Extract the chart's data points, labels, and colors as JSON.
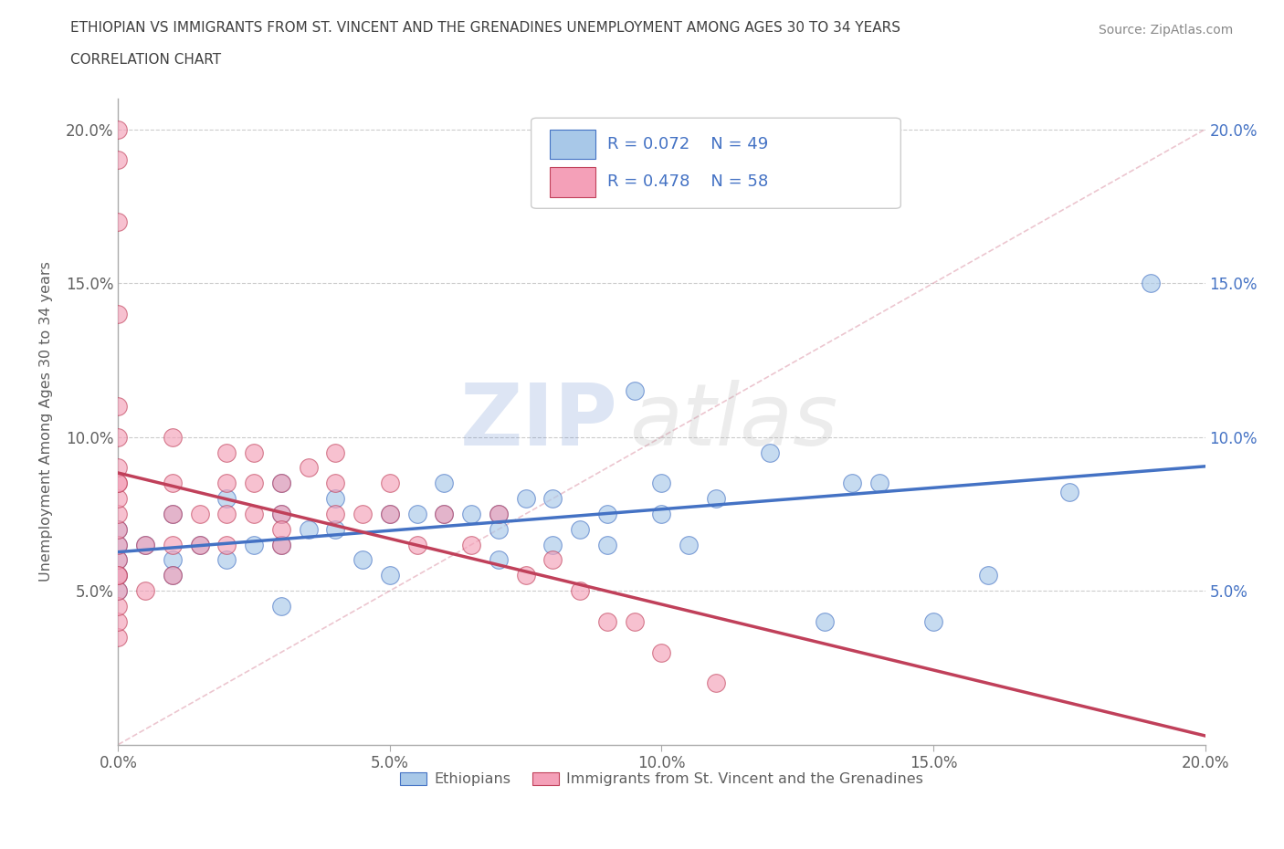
{
  "title_line1": "ETHIOPIAN VS IMMIGRANTS FROM ST. VINCENT AND THE GRENADINES UNEMPLOYMENT AMONG AGES 30 TO 34 YEARS",
  "title_line2": "CORRELATION CHART",
  "source": "Source: ZipAtlas.com",
  "ylabel": "Unemployment Among Ages 30 to 34 years",
  "xlim": [
    0.0,
    0.2
  ],
  "ylim": [
    0.0,
    0.21
  ],
  "xticks": [
    0.0,
    0.05,
    0.1,
    0.15,
    0.2
  ],
  "yticks": [
    0.0,
    0.05,
    0.1,
    0.15,
    0.2
  ],
  "xticklabels": [
    "0.0%",
    "5.0%",
    "10.0%",
    "15.0%",
    "20.0%"
  ],
  "yticklabels": [
    "",
    "5.0%",
    "10.0%",
    "15.0%",
    "20.0%"
  ],
  "legend_R1": "R = 0.072",
  "legend_N1": "N = 49",
  "legend_R2": "R = 0.478",
  "legend_N2": "N = 58",
  "color_blue": "#a8c8e8",
  "color_pink": "#f4a0b8",
  "color_blue_line": "#4472c4",
  "color_pink_line": "#c0405a",
  "watermark_zip": "ZIP",
  "watermark_atlas": "atlas",
  "background_color": "#ffffff",
  "title_color": "#404040",
  "axis_color": "#606060",
  "tick_color": "#606060",
  "ethiopian_x": [
    0.0,
    0.0,
    0.0,
    0.0,
    0.0,
    0.005,
    0.01,
    0.01,
    0.01,
    0.015,
    0.02,
    0.02,
    0.025,
    0.03,
    0.03,
    0.03,
    0.03,
    0.035,
    0.04,
    0.04,
    0.045,
    0.05,
    0.05,
    0.055,
    0.06,
    0.06,
    0.065,
    0.07,
    0.07,
    0.07,
    0.075,
    0.08,
    0.08,
    0.085,
    0.09,
    0.09,
    0.095,
    0.1,
    0.1,
    0.105,
    0.11,
    0.12,
    0.13,
    0.135,
    0.14,
    0.15,
    0.16,
    0.175,
    0.19
  ],
  "ethiopian_y": [
    0.065,
    0.06,
    0.055,
    0.05,
    0.07,
    0.065,
    0.06,
    0.055,
    0.075,
    0.065,
    0.06,
    0.08,
    0.065,
    0.075,
    0.085,
    0.045,
    0.065,
    0.07,
    0.07,
    0.08,
    0.06,
    0.055,
    0.075,
    0.075,
    0.075,
    0.085,
    0.075,
    0.075,
    0.07,
    0.06,
    0.08,
    0.065,
    0.08,
    0.07,
    0.075,
    0.065,
    0.115,
    0.085,
    0.075,
    0.065,
    0.08,
    0.095,
    0.04,
    0.085,
    0.085,
    0.04,
    0.055,
    0.082,
    0.15
  ],
  "vincent_x": [
    0.0,
    0.0,
    0.0,
    0.0,
    0.0,
    0.0,
    0.0,
    0.0,
    0.0,
    0.0,
    0.0,
    0.0,
    0.0,
    0.0,
    0.0,
    0.0,
    0.0,
    0.0,
    0.0,
    0.0,
    0.005,
    0.005,
    0.01,
    0.01,
    0.01,
    0.01,
    0.01,
    0.015,
    0.015,
    0.02,
    0.02,
    0.02,
    0.02,
    0.025,
    0.025,
    0.025,
    0.03,
    0.03,
    0.03,
    0.03,
    0.035,
    0.04,
    0.04,
    0.04,
    0.045,
    0.05,
    0.05,
    0.055,
    0.06,
    0.065,
    0.07,
    0.075,
    0.08,
    0.085,
    0.09,
    0.095,
    0.1,
    0.11
  ],
  "vincent_y": [
    0.035,
    0.04,
    0.045,
    0.05,
    0.055,
    0.06,
    0.065,
    0.07,
    0.075,
    0.08,
    0.085,
    0.09,
    0.1,
    0.11,
    0.14,
    0.17,
    0.19,
    0.2,
    0.085,
    0.055,
    0.05,
    0.065,
    0.055,
    0.065,
    0.075,
    0.085,
    0.1,
    0.065,
    0.075,
    0.065,
    0.075,
    0.085,
    0.095,
    0.075,
    0.085,
    0.095,
    0.065,
    0.075,
    0.085,
    0.07,
    0.09,
    0.075,
    0.085,
    0.095,
    0.075,
    0.075,
    0.085,
    0.065,
    0.075,
    0.065,
    0.075,
    0.055,
    0.06,
    0.05,
    0.04,
    0.04,
    0.03,
    0.02
  ]
}
